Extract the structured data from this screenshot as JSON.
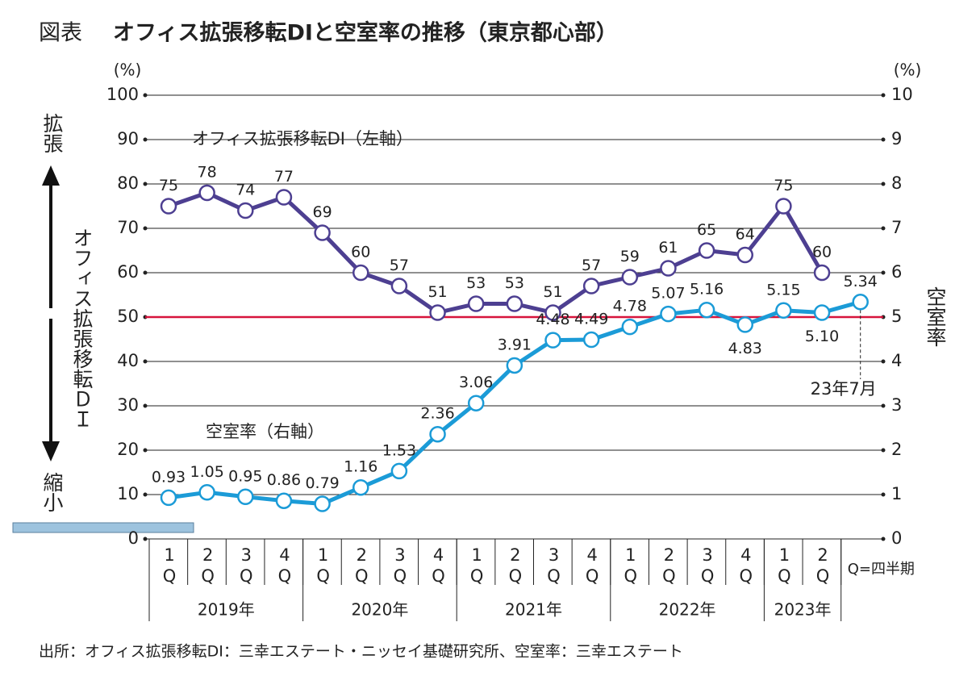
{
  "chart_data": {
    "type": "line",
    "label": "図表",
    "title": "オフィス拡張移転DIと空室率の推移（東京都心部）",
    "categories": [
      "1Q",
      "2Q",
      "3Q",
      "4Q",
      "1Q",
      "2Q",
      "3Q",
      "4Q",
      "1Q",
      "2Q",
      "3Q",
      "4Q",
      "1Q",
      "2Q",
      "3Q",
      "4Q",
      "1Q",
      "2Q",
      "23年7月"
    ],
    "groups": [
      {
        "name": "2019年",
        "span": 4
      },
      {
        "name": "2020年",
        "span": 4
      },
      {
        "name": "2021年",
        "span": 4
      },
      {
        "name": "2022年",
        "span": 4
      },
      {
        "name": "2023年",
        "span": 2
      }
    ],
    "category_note": "Q=四半期",
    "series": [
      {
        "name": "オフィス拡張移転DI（左軸）",
        "color": "#4d3f91",
        "values": [
          75,
          78,
          74,
          77,
          69,
          60,
          57,
          51,
          53,
          53,
          51,
          57,
          59,
          61,
          65,
          64,
          75,
          60,
          null
        ]
      },
      {
        "name": "空室率（右軸）",
        "color": "#1b9bd7",
        "axis": "y2",
        "values": [
          0.93,
          1.05,
          0.95,
          0.86,
          0.79,
          1.16,
          1.53,
          2.36,
          3.06,
          3.91,
          4.48,
          4.49,
          4.78,
          5.07,
          5.16,
          4.83,
          5.15,
          5.1,
          5.34
        ],
        "value_labels": [
          "0.93",
          "1.05",
          "0.95",
          "0.86",
          "0.79",
          "1.16",
          "1.53",
          "2.36",
          "3.06",
          "3.91",
          "4.48",
          "4.49",
          "4.78",
          "5.07",
          "5.16",
          "4.83",
          "5.15",
          "5.10",
          "5.34"
        ]
      }
    ],
    "ylim": [
      0,
      100
    ],
    "yticks": [
      0,
      10,
      20,
      30,
      40,
      50,
      60,
      70,
      80,
      90,
      100
    ],
    "y2lim": [
      0,
      10
    ],
    "y2ticks": [
      0,
      1,
      2,
      3,
      4,
      5,
      6,
      7,
      8,
      9,
      10
    ],
    "y_unit": "(%)",
    "y2_unit": "(%)",
    "y_label": "オフィス拡張移転ＤＩ",
    "y_label_top": "拡張",
    "y_label_bottom": "縮小",
    "y2_label": "空室率",
    "reference_line": {
      "value": 50,
      "color": "#d7143c"
    },
    "grid": true,
    "source": "出所：オフィス拡張移転DI：三幸エステート・ニッセイ基礎研究所、空室率：三幸エステート"
  }
}
